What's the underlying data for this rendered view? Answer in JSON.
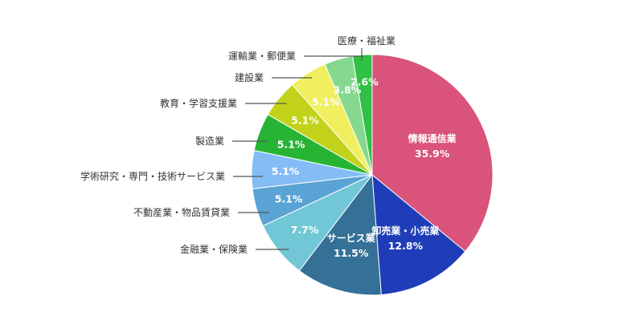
{
  "chart_data": {
    "type": "pie",
    "title": "",
    "slices": [
      {
        "name": "情報通信業",
        "value": 35.9,
        "label": "35.9%",
        "color": "#d9537a",
        "name_inside": true
      },
      {
        "name": "卸売業・小売業",
        "value": 12.8,
        "label": "12.8%",
        "color": "#1f3db8",
        "name_inside": true
      },
      {
        "name": "サービス業",
        "value": 11.5,
        "label": "11.5%",
        "color": "#357096",
        "name_inside": true
      },
      {
        "name": "金融業・保険業",
        "value": 7.7,
        "label": "7.7%",
        "color": "#72c7d6",
        "name_inside": false
      },
      {
        "name": "不動産業・物品賃貸業",
        "value": 5.1,
        "label": "5.1%",
        "color": "#5aa3d5",
        "name_inside": false
      },
      {
        "name": "学術研究・専門・技術サービス業",
        "value": 5.1,
        "label": "5.1%",
        "color": "#84bdf5",
        "name_inside": false
      },
      {
        "name": "製造業",
        "value": 5.1,
        "label": "5.1%",
        "color": "#27b435",
        "name_inside": false
      },
      {
        "name": "教育・学習支援業",
        "value": 5.1,
        "label": "5.1%",
        "color": "#c2d21a",
        "name_inside": false
      },
      {
        "name": "建設業",
        "value": 5.1,
        "label": "5.1%",
        "color": "#f0ef60",
        "name_inside": false
      },
      {
        "name": "運輸業・郵便業",
        "value": 3.8,
        "label": "3.8%",
        "color": "#86d88f",
        "name_inside": false
      },
      {
        "name": "医療・福祉業",
        "value": 2.6,
        "label": "2.6%",
        "color": "#2fc045",
        "name_inside": false
      }
    ]
  }
}
